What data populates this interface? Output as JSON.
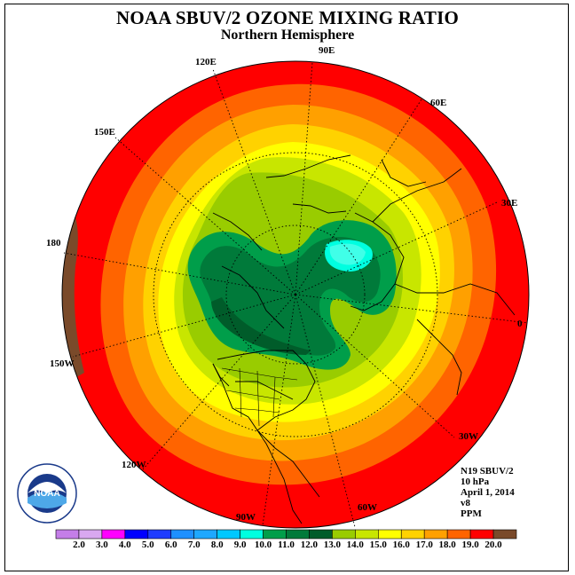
{
  "header": {
    "title": "NOAA SBUV/2 OZONE MIXING RATIO",
    "subtitle": "Northern Hemisphere"
  },
  "longitude_labels": {
    "l90e": "90E",
    "l60e": "60E",
    "l30e": "30E",
    "l0": "0",
    "l30w": "30W",
    "l60w": "60W",
    "l90w": "90W",
    "l120w": "120W",
    "l150w": "150W",
    "l180": "180",
    "l150e": "150E",
    "l120e": "120E"
  },
  "info": {
    "satellite": "N19 SBUV/2",
    "level": "10 hPa",
    "date": "April 1, 2014",
    "version": "v8",
    "units": "PPM"
  },
  "colorbar": {
    "labels": [
      "2.0",
      "3.0",
      "4.0",
      "5.0",
      "6.0",
      "7.0",
      "8.0",
      "9.0",
      "10.0",
      "11.0",
      "12.0",
      "13.0",
      "14.0",
      "15.0",
      "16.0",
      "17.0",
      "18.0",
      "19.0",
      "20.0"
    ],
    "colors": [
      "#c47ee8",
      "#d9a8f0",
      "#ff00ff",
      "#0000ff",
      "#1e3cff",
      "#1e90ff",
      "#1ea8ff",
      "#00c8ff",
      "#00ffe0",
      "#009e4a",
      "#007a3a",
      "#005c2a",
      "#99cc00",
      "#c8e600",
      "#ffff00",
      "#ffd200",
      "#ffa000",
      "#ff6400",
      "#ff0000",
      "#7a4a2a"
    ]
  },
  "logo": {
    "text": "NOAA",
    "ring_text": "NATIONAL OCEANIC AND ATMOSPHERIC ADMINISTRATION · U.S. DEPARTMENT OF COMMERCE"
  }
}
